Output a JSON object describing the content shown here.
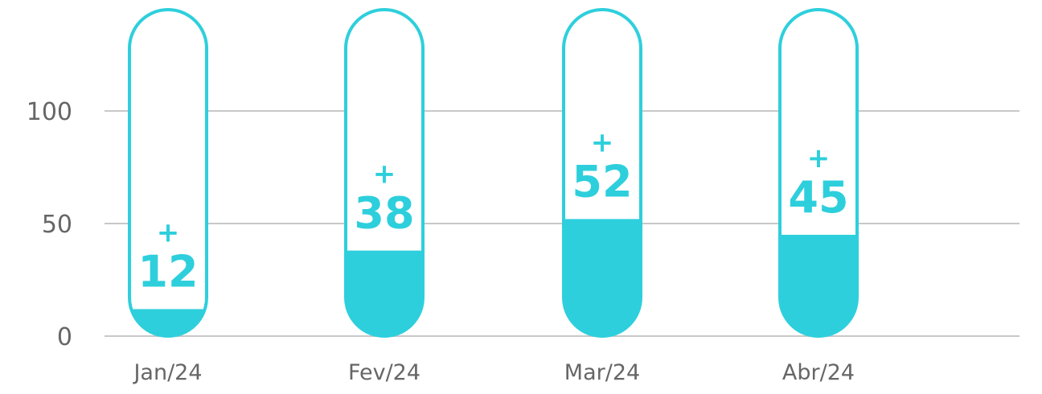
{
  "chart_data": {
    "type": "bar",
    "categories": [
      "Jan/24",
      "Fev/24",
      "Mar/24",
      "Abr/24"
    ],
    "values": [
      12,
      38,
      52,
      45
    ],
    "value_prefix": "+",
    "ylim": [
      0,
      100
    ],
    "yticks": [
      0,
      50,
      100
    ],
    "grid": true,
    "title": "",
    "xlabel": "",
    "ylabel": "",
    "colors": {
      "accent": "#2ecfdc",
      "grid": "#c8c8c8",
      "text": "#666666"
    }
  }
}
